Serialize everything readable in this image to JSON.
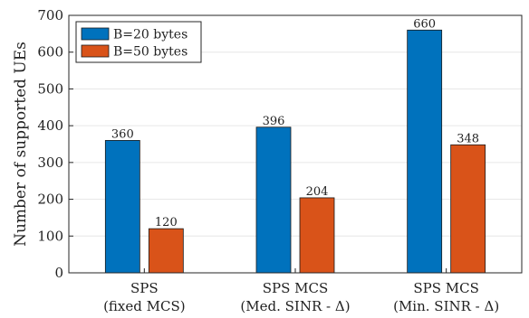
{
  "chart_data": {
    "type": "bar",
    "categories": [
      [
        "SPS",
        "(fixed MCS)"
      ],
      [
        "SPS MCS",
        "(Med. SINR - Δ)"
      ],
      [
        "SPS MCS",
        "(Min. SINR - Δ)"
      ]
    ],
    "series": [
      {
        "name": "B=20 bytes",
        "values": [
          360,
          396,
          660
        ],
        "color": "#0072BD"
      },
      {
        "name": "B=50 bytes",
        "values": [
          120,
          204,
          348
        ],
        "color": "#D95319"
      }
    ],
    "ylabel": "Number of supported UEs",
    "xlabel": "",
    "ylim": [
      0,
      700
    ],
    "yticks": [
      0,
      100,
      200,
      300,
      400,
      500,
      600,
      700
    ],
    "grid": true,
    "legend_position": "top-left"
  }
}
